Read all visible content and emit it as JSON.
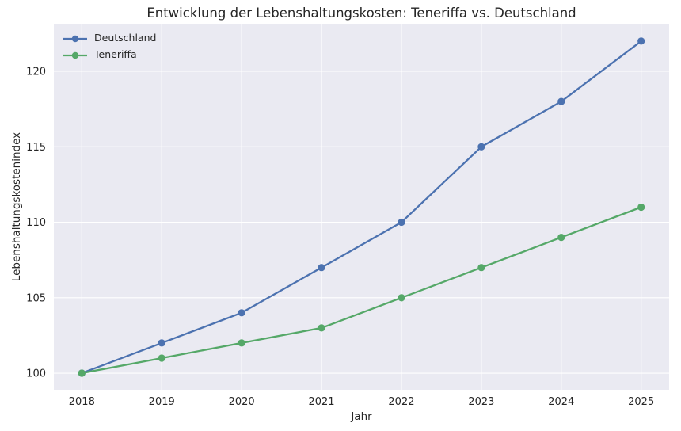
{
  "chart_data": {
    "type": "line",
    "title": "Entwicklung der Lebenshaltungskosten: Teneriffa vs. Deutschland",
    "xlabel": "Jahr",
    "ylabel": "Lebenshaltungskostenindex",
    "x": [
      2018,
      2019,
      2020,
      2021,
      2022,
      2023,
      2024,
      2025
    ],
    "series": [
      {
        "name": "Deutschland",
        "color": "#4C72B0",
        "values": [
          100,
          102,
          104,
          107,
          110,
          115,
          118,
          122
        ]
      },
      {
        "name": "Teneriffa",
        "color": "#55A868",
        "values": [
          100,
          101,
          102,
          103,
          105,
          107,
          109,
          111
        ]
      }
    ],
    "yticks": [
      100,
      105,
      110,
      115,
      120
    ],
    "xlim": [
      2017.65,
      2025.35
    ],
    "ylim": [
      98.9,
      123.15
    ],
    "grid": true,
    "legend_position": "upper left",
    "plot_bg": "#EAEAF2",
    "grid_color": "#FFFFFF",
    "text_color": "#262626",
    "marker": "circle",
    "line_width": 2.3,
    "marker_radius": 4.6
  }
}
